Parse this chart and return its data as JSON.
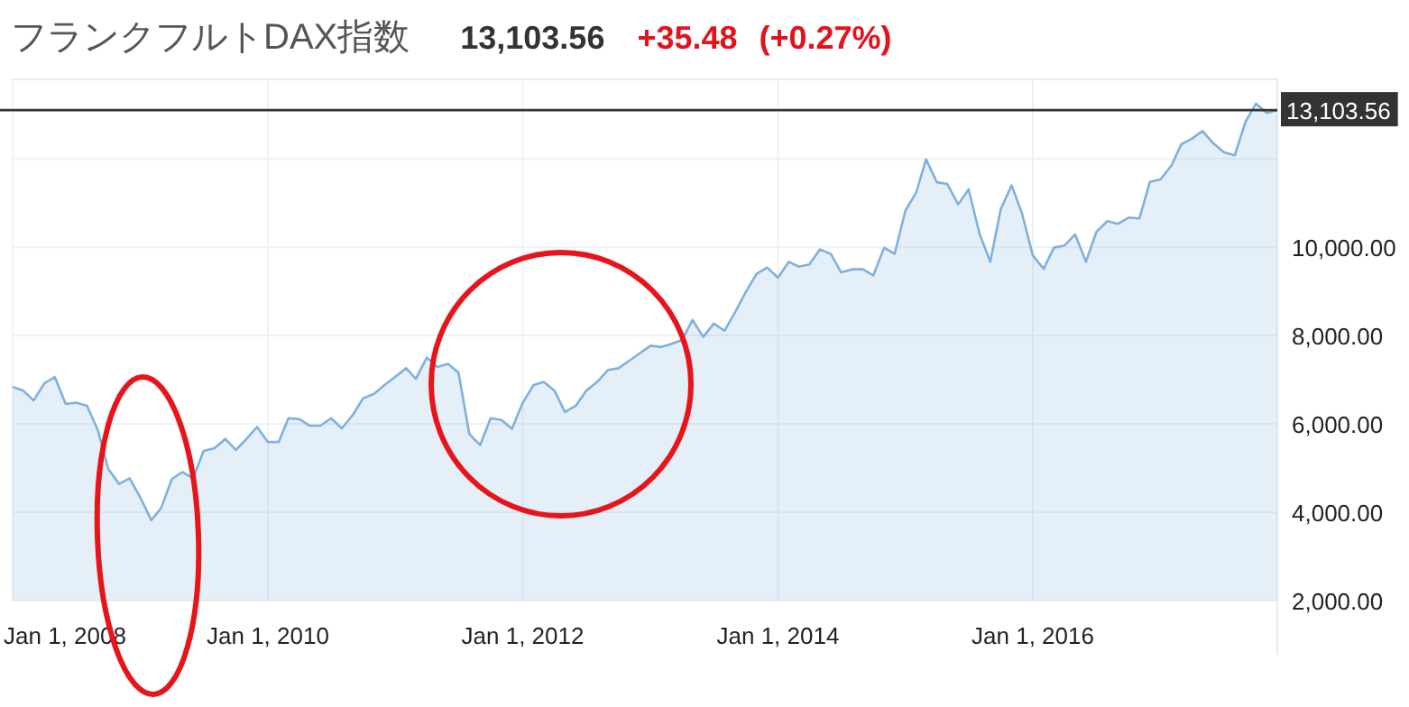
{
  "chart_data": {
    "type": "area",
    "title": "フランクフルトDAX指数",
    "annotations": [
      "13,103.56",
      "+35.48",
      "(+0.27%)"
    ],
    "x": [
      "2008-01",
      "2008-02",
      "2008-03",
      "2008-04",
      "2008-05",
      "2008-06",
      "2008-07",
      "2008-08",
      "2008-09",
      "2008-10",
      "2008-11",
      "2008-12",
      "2009-01",
      "2009-02",
      "2009-03",
      "2009-04",
      "2009-05",
      "2009-06",
      "2009-07",
      "2009-08",
      "2009-09",
      "2009-10",
      "2009-11",
      "2009-12",
      "2010-01",
      "2010-02",
      "2010-03",
      "2010-04",
      "2010-05",
      "2010-06",
      "2010-07",
      "2010-08",
      "2010-09",
      "2010-10",
      "2010-11",
      "2010-12",
      "2011-01",
      "2011-02",
      "2011-03",
      "2011-04",
      "2011-05",
      "2011-06",
      "2011-07",
      "2011-08",
      "2011-09",
      "2011-10",
      "2011-11",
      "2011-12",
      "2012-01",
      "2012-02",
      "2012-03",
      "2012-04",
      "2012-05",
      "2012-06",
      "2012-07",
      "2012-08",
      "2012-09",
      "2012-10",
      "2012-11",
      "2012-12",
      "2013-01",
      "2013-02",
      "2013-03",
      "2013-04",
      "2013-05",
      "2013-06",
      "2013-07",
      "2013-08",
      "2013-09",
      "2013-10",
      "2013-11",
      "2013-12",
      "2014-01",
      "2014-02",
      "2014-03",
      "2014-04",
      "2014-05",
      "2014-06",
      "2014-07",
      "2014-08",
      "2014-09",
      "2014-10",
      "2014-11",
      "2014-12",
      "2015-01",
      "2015-02",
      "2015-03",
      "2015-04",
      "2015-05",
      "2015-06",
      "2015-07",
      "2015-08",
      "2015-09",
      "2015-10",
      "2015-11",
      "2015-12",
      "2016-01",
      "2016-02",
      "2016-03",
      "2016-04",
      "2016-05",
      "2016-06",
      "2016-07",
      "2016-08",
      "2016-09",
      "2016-10",
      "2016-11",
      "2016-12",
      "2017-01",
      "2017-02",
      "2017-03",
      "2017-04",
      "2017-05",
      "2017-06",
      "2017-07",
      "2017-08",
      "2017-09",
      "2017-10",
      "2017-11",
      "2017-12"
    ],
    "series": [
      {
        "color": "#7fb1dc",
        "values": [
          6840,
          6750,
          6530,
          6920,
          7060,
          6450,
          6480,
          6410,
          5860,
          4980,
          4640,
          4770,
          4330,
          3820,
          4090,
          4750,
          4910,
          4770,
          5390,
          5450,
          5660,
          5410,
          5660,
          5930,
          5590,
          5590,
          6130,
          6110,
          5960,
          5960,
          6130,
          5900,
          6200,
          6580,
          6680,
          6880,
          7070,
          7260,
          7020,
          7500,
          7290,
          7360,
          7160,
          5770,
          5520,
          6130,
          6090,
          5890,
          6480,
          6880,
          6950,
          6750,
          6270,
          6410,
          6750,
          6950,
          7220,
          7260,
          7430,
          7600,
          7770,
          7740,
          7810,
          7900,
          8350,
          7970,
          8270,
          8110,
          8540,
          8990,
          9400,
          9540,
          9310,
          9670,
          9560,
          9610,
          9950,
          9850,
          9430,
          9500,
          9500,
          9360,
          9990,
          9850,
          10830,
          11240,
          11990,
          11470,
          11430,
          10970,
          11310,
          10310,
          9670,
          10860,
          11400,
          10760,
          9810,
          9510,
          9990,
          10040,
          10290,
          9670,
          10350,
          10590,
          10530,
          10670,
          10650,
          11480,
          11540,
          11850,
          12330,
          12460,
          12630,
          12350,
          12150,
          12080,
          12840,
          13250,
          13040,
          13104
        ]
      }
    ],
    "xlim": [
      "2008-01",
      "2017-12"
    ],
    "ylim": [
      2000,
      13800
    ],
    "xticks": [
      {
        "value": "2008-01-01",
        "label": "Jan 1, 2008"
      },
      {
        "value": "2010-01-01",
        "label": "Jan 1, 2010"
      },
      {
        "value": "2012-01-01",
        "label": "Jan 1, 2012"
      },
      {
        "value": "2014-01-01",
        "label": "Jan 1, 2014"
      },
      {
        "value": "2016-01-01",
        "label": "Jan 1, 2016"
      }
    ],
    "yticks": [
      {
        "value": 2000,
        "label": "2,000.00"
      },
      {
        "value": 4000,
        "label": "4,000.00"
      },
      {
        "value": 6000,
        "label": "6,000.00"
      },
      {
        "value": 8000,
        "label": "8,000.00"
      },
      {
        "value": 10000,
        "label": "10,000.00"
      },
      {
        "value": 12000,
        "label": null
      }
    ],
    "grid": true,
    "ref_lines": [
      {
        "axis": "y",
        "value": 13103.56,
        "label": "13,103.56",
        "color": "#333333"
      }
    ]
  }
}
